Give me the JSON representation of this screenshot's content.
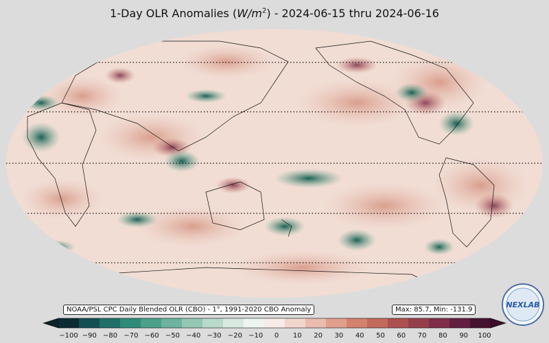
{
  "title_text": "1-Day OLR Anomalies (",
  "title_unit_main": "W/m",
  "title_unit_exp": "2",
  "title_rest": ") - 2024-06-15 thru 2024-06-16",
  "source_label": "NOAA/PSL CPC Daily Blended OLR (CBO) - 1°, 1991-2020 CBO Anomaly",
  "stats_label": "Max: 85.7,  Min: -131.9",
  "logo_text": "NEXLAB",
  "colorbar": {
    "ticks": [
      "−100",
      "−90",
      "−80",
      "−70",
      "−60",
      "−50",
      "−40",
      "−30",
      "−20",
      "−10",
      "0",
      "10",
      "20",
      "30",
      "40",
      "50",
      "60",
      "70",
      "80",
      "90",
      "100"
    ],
    "colors": [
      "#0e2a33",
      "#134e55",
      "#1f6f68",
      "#2f8a78",
      "#4aa08a",
      "#6db39f",
      "#94c7b4",
      "#b9dacb",
      "#d8eae0",
      "#eef5f0",
      "#f7ece7",
      "#f1d6cc",
      "#e9bcad",
      "#df9f8c",
      "#d2826f",
      "#c26a5b",
      "#ac5150",
      "#963f4c",
      "#7e2e48",
      "#621f40",
      "#45122f"
    ]
  }
}
